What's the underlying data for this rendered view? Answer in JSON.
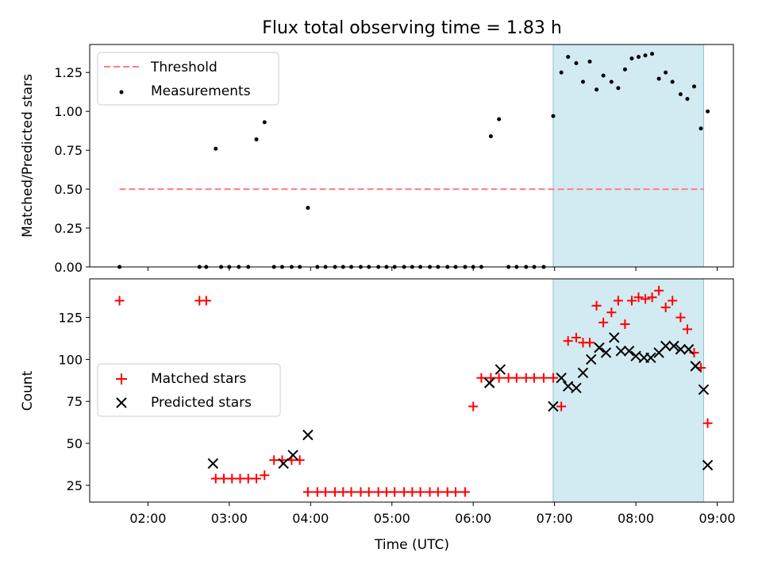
{
  "figure": {
    "title": "Flux total observing time = 1.83 h",
    "xlabel": "Time (UTC)",
    "xticks": [
      "02:00",
      "03:00",
      "04:00",
      "05:00",
      "06:00",
      "07:00",
      "08:00",
      "09:00"
    ],
    "colors": {
      "highlight": "#add8e6",
      "threshold": "#ff7f7f",
      "measurement": "#000000",
      "matched": "#ff0000",
      "predicted": "#000000"
    }
  },
  "chart_data": [
    {
      "type": "scatter",
      "name": "ratio",
      "ylabel": "Matched/Predicted stars",
      "xlim": [
        "01:17",
        "09:12"
      ],
      "ylim": [
        0,
        1.43
      ],
      "yticks": [
        "0.00",
        "0.25",
        "0.50",
        "0.75",
        "1.00",
        "1.25"
      ],
      "grid": false,
      "legend": {
        "position": "top-left",
        "entries": [
          "Threshold",
          "Measurements"
        ]
      },
      "highlight_span": [
        "06:59",
        "08:50"
      ],
      "threshold": {
        "name": "Threshold",
        "value": 0.5,
        "x_range": [
          "01:39",
          "08:50"
        ]
      },
      "series": [
        {
          "name": "Measurements",
          "x": [
            "01:39",
            "02:38",
            "02:43",
            "02:50",
            "02:54",
            "03:00",
            "03:07",
            "03:14",
            "03:20",
            "03:26",
            "03:33",
            "03:39",
            "03:46",
            "03:52",
            "03:58",
            "04:05",
            "04:11",
            "04:18",
            "04:24",
            "04:30",
            "04:37",
            "04:43",
            "04:50",
            "04:56",
            "05:02",
            "05:09",
            "05:15",
            "05:21",
            "05:28",
            "05:34",
            "05:41",
            "05:47",
            "05:54",
            "06:00",
            "06:06",
            "06:13",
            "06:19",
            "06:26",
            "06:32",
            "06:39",
            "06:45",
            "06:52",
            "06:59",
            "07:05",
            "07:10",
            "07:16",
            "07:21",
            "07:26",
            "07:31",
            "07:36",
            "07:42",
            "07:47",
            "07:52",
            "07:57",
            "08:02",
            "08:07",
            "08:12",
            "08:17",
            "08:22",
            "08:27",
            "08:33",
            "08:38",
            "08:43",
            "08:48",
            "08:53"
          ],
          "y": [
            0,
            0,
            0,
            0.76,
            0,
            0,
            0,
            0,
            0.82,
            0.93,
            0,
            0,
            0,
            0,
            0.38,
            0,
            0,
            0,
            0,
            0,
            0,
            0,
            0,
            0,
            0,
            0,
            0,
            0,
            0,
            0,
            0,
            0,
            0,
            0,
            0,
            0.84,
            0.95,
            0,
            0,
            0,
            0,
            0,
            0.97,
            1.25,
            1.35,
            1.31,
            1.19,
            1.32,
            1.14,
            1.23,
            1.19,
            1.15,
            1.27,
            1.34,
            1.35,
            1.36,
            1.37,
            1.21,
            1.25,
            1.19,
            1.11,
            1.08,
            1.16,
            0.89,
            1.0
          ]
        }
      ]
    },
    {
      "type": "scatter",
      "name": "counts",
      "ylabel": "Count",
      "xlim": [
        "01:17",
        "09:12"
      ],
      "ylim": [
        15,
        148
      ],
      "yticks": [
        "25",
        "50",
        "75",
        "100",
        "125"
      ],
      "grid": false,
      "legend": {
        "position": "center-left",
        "entries": [
          "Matched stars",
          "Predicted stars"
        ]
      },
      "highlight_span": [
        "06:59",
        "08:50"
      ],
      "series": [
        {
          "name": "Matched stars",
          "x": [
            "01:39",
            "02:38",
            "02:43",
            "02:50",
            "02:56",
            "03:02",
            "03:08",
            "03:14",
            "03:20",
            "03:26",
            "03:33",
            "03:39",
            "03:46",
            "03:52",
            "03:58",
            "04:05",
            "04:11",
            "04:18",
            "04:24",
            "04:30",
            "04:37",
            "04:43",
            "04:50",
            "04:56",
            "05:02",
            "05:09",
            "05:15",
            "05:21",
            "05:28",
            "05:34",
            "05:41",
            "05:47",
            "05:54",
            "06:00",
            "06:06",
            "06:13",
            "06:19",
            "06:26",
            "06:32",
            "06:39",
            "06:45",
            "06:52",
            "06:59",
            "07:05",
            "07:10",
            "07:16",
            "07:21",
            "07:26",
            "07:31",
            "07:36",
            "07:42",
            "07:47",
            "07:52",
            "07:57",
            "08:02",
            "08:07",
            "08:12",
            "08:17",
            "08:22",
            "08:27",
            "08:33",
            "08:38",
            "08:43",
            "08:48",
            "08:53"
          ],
          "y": [
            135,
            135,
            135,
            29,
            29,
            29,
            29,
            29,
            29,
            31,
            40,
            40,
            40,
            40,
            21,
            21,
            21,
            21,
            21,
            21,
            21,
            21,
            21,
            21,
            21,
            21,
            21,
            21,
            21,
            21,
            21,
            21,
            21,
            72,
            89,
            89,
            89,
            89,
            89,
            89,
            89,
            89,
            89,
            72,
            111,
            113,
            110,
            110,
            132,
            122,
            128,
            135,
            121,
            135,
            137,
            136,
            137,
            141,
            131,
            135,
            125,
            118,
            104,
            95,
            62
          ]
        },
        {
          "name": "Predicted stars",
          "x": [
            "02:48",
            "03:40",
            "03:47",
            "03:58",
            "06:12",
            "06:20",
            "06:59",
            "07:05",
            "07:10",
            "07:16",
            "07:21",
            "07:27",
            "07:33",
            "07:38",
            "07:44",
            "07:49",
            "07:55",
            "08:00",
            "08:06",
            "08:11",
            "08:17",
            "08:22",
            "08:28",
            "08:33",
            "08:39",
            "08:44",
            "08:50",
            "08:53"
          ],
          "y": [
            38,
            38,
            43,
            55,
            86,
            94,
            72,
            89,
            84,
            83,
            92,
            100,
            107,
            104,
            113,
            105,
            105,
            102,
            101,
            101,
            104,
            108,
            108,
            106,
            106,
            96,
            82,
            37
          ]
        }
      ]
    }
  ]
}
